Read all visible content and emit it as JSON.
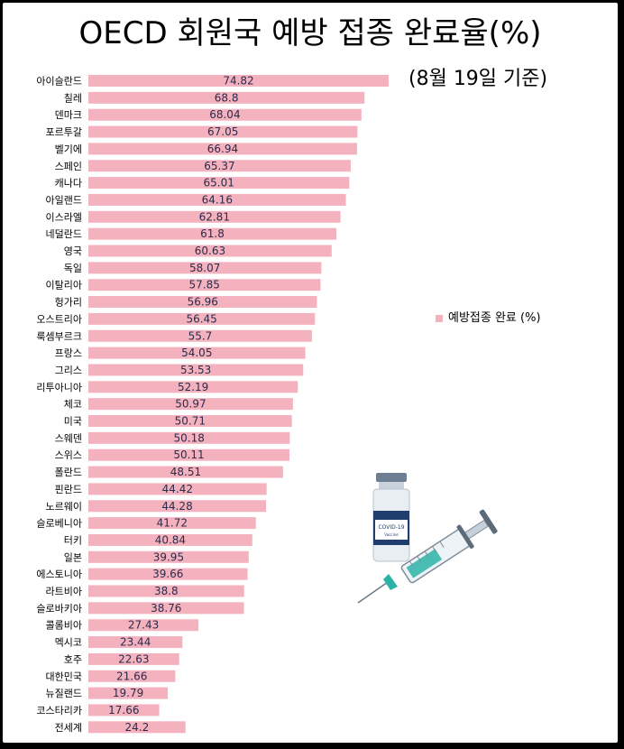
{
  "title": "OECD 회원국 예방 접종 완료율(%)",
  "subtitle": "(8월 19일 기준)",
  "vial_label": "COVID-19",
  "vial_sub": "Vaccine",
  "colors": {
    "bar": "#f4b2bf",
    "value_text": "#2b2b4a",
    "label_text": "#000000"
  },
  "chart_data": {
    "type": "bar",
    "orientation": "horizontal",
    "legend_position": "right",
    "grid": false,
    "xlim": [
      0,
      80
    ],
    "series": [
      {
        "name": "예방접종 완료 (%)"
      }
    ],
    "categories": [
      "아이슬란드",
      "칠레",
      "덴마크",
      "포르투갈",
      "벨기에",
      "스페인",
      "캐나다",
      "아일랜드",
      "이스라엘",
      "네덜란드",
      "영국",
      "독일",
      "이탈리아",
      "헝가리",
      "오스트리아",
      "룩셈부르크",
      "프랑스",
      "그리스",
      "리투아니아",
      "체코",
      "미국",
      "스웨덴",
      "스위스",
      "폴란드",
      "핀란드",
      "노르웨이",
      "슬로베니아",
      "터키",
      "일본",
      "에스토니아",
      "라트비아",
      "슬로바키아",
      "콜롬비아",
      "멕시코",
      "호주",
      "대한민국",
      "뉴질랜드",
      "코스타리카",
      "전세계"
    ],
    "values": [
      74.82,
      68.8,
      68.04,
      67.05,
      66.94,
      65.37,
      65.01,
      64.16,
      62.81,
      61.8,
      60.63,
      58.07,
      57.85,
      56.96,
      56.45,
      55.7,
      54.05,
      53.53,
      52.19,
      50.97,
      50.71,
      50.18,
      50.11,
      48.51,
      44.42,
      44.28,
      41.72,
      40.84,
      39.95,
      39.66,
      38.8,
      38.76,
      27.43,
      23.44,
      22.63,
      21.66,
      19.79,
      17.66,
      24.2
    ],
    "value_labels": [
      "74.82",
      "68.8",
      "68.04",
      "67.05",
      "66.94",
      "65.37",
      "65.01",
      "64.16",
      "62.81",
      "61.8",
      "60.63",
      "58.07",
      "57.85",
      "56.96",
      "56.45",
      "55.7",
      "54.05",
      "53.53",
      "52.19",
      "50.97",
      "50.71",
      "50.18",
      "50.11",
      "48.51",
      "44.42",
      "44.28",
      "41.72",
      "40.84",
      "39.95",
      "39.66",
      "38.8",
      "38.76",
      "27.43",
      "23.44",
      "22.63",
      "21.66",
      "19.79",
      "17.66",
      "24.2"
    ]
  }
}
